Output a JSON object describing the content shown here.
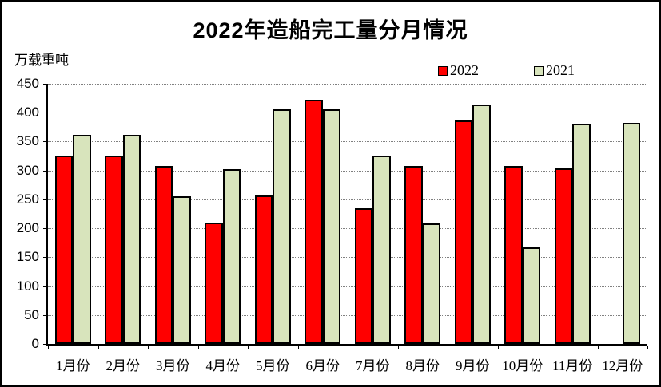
{
  "title": "2022年造船完工量分月情况",
  "y_axis_unit": "万载重吨",
  "legend": [
    {
      "label": "2022",
      "color": "#ff0000"
    },
    {
      "label": "2021",
      "color": "#d8e4bc"
    }
  ],
  "chart_data": {
    "type": "bar",
    "title": "2022年造船完工量分月情况",
    "ylabel": "万载重吨",
    "xlabel": "",
    "categories": [
      "1月份",
      "2月份",
      "3月份",
      "4月份",
      "5月份",
      "6月份",
      "7月份",
      "8月份",
      "9月份",
      "10月份",
      "11月份",
      "12月份"
    ],
    "series": [
      {
        "name": "2022",
        "color": "#ff0000",
        "values": [
          326,
          326,
          308,
          210,
          257,
          423,
          234,
          308,
          386,
          308,
          303,
          null
        ]
      },
      {
        "name": "2021",
        "color": "#d8e4bc",
        "values": [
          362,
          362,
          256,
          302,
          406,
          406,
          326,
          208,
          414,
          167,
          381,
          382
        ]
      }
    ],
    "ylim": [
      0,
      450
    ],
    "ytick_step": 50,
    "grid": "horizontal-dotted",
    "legend_position": "top-center-right"
  }
}
